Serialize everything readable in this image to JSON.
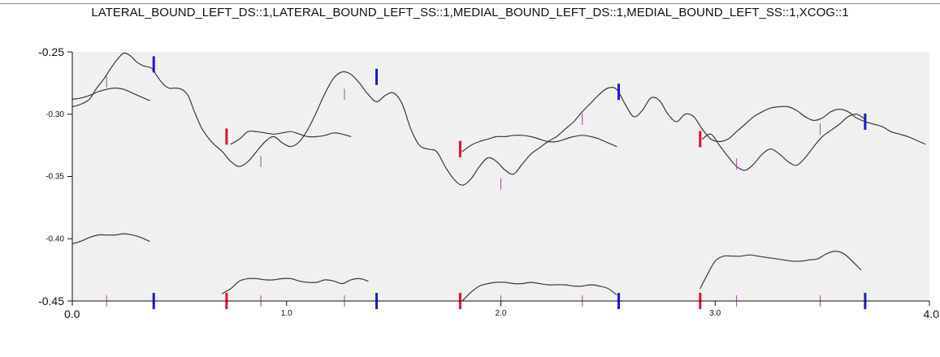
{
  "chart_data": {
    "type": "line",
    "title": "LATERAL_BOUND_LEFT_DS::1,LATERAL_BOUND_LEFT_SS::1,MEDIAL_BOUND_LEFT_DS::1,MEDIAL_BOUND_LEFT_SS::1,XCOG::1",
    "xlabel": "",
    "ylabel": "",
    "xlim": [
      0.0,
      4.0
    ],
    "ylim": [
      -0.45,
      -0.25
    ],
    "grid": false,
    "x_ticks": [
      {
        "value": 0.0,
        "label": "0.0",
        "size": "large"
      },
      {
        "value": 1.0,
        "label": "1.0",
        "size": "small"
      },
      {
        "value": 2.0,
        "label": "2.0",
        "size": "small"
      },
      {
        "value": 3.0,
        "label": "3.0",
        "size": "small"
      },
      {
        "value": 4.0,
        "label": "4.0",
        "size": "large"
      }
    ],
    "y_ticks": [
      {
        "value": -0.25,
        "label": "-0.25",
        "size": "large"
      },
      {
        "value": -0.3,
        "label": "-0.30",
        "size": "small"
      },
      {
        "value": -0.35,
        "label": "-0.35",
        "size": "small"
      },
      {
        "value": -0.4,
        "label": "-0.40",
        "size": "small"
      },
      {
        "value": -0.45,
        "label": "-0.45",
        "size": "large"
      }
    ],
    "colors": {
      "plot_background": "#f0f0f0",
      "series_line": "#3a3a3a",
      "minor_event": "#b03cb8",
      "event_red": "#e0102c",
      "event_blue": "#1a1acc",
      "axis": "#111111"
    },
    "series": [
      {
        "x": [
          0.0,
          0.04,
          0.08,
          0.11,
          0.15,
          0.18,
          0.21,
          0.24,
          0.27,
          0.3,
          0.33,
          0.37,
          0.39,
          0.42,
          0.45,
          0.48,
          0.51,
          0.54,
          0.57,
          0.6,
          0.63,
          0.66,
          0.7,
          0.74,
          0.78,
          0.82,
          0.86,
          0.9,
          0.94,
          0.98,
          1.02,
          1.06,
          1.1,
          1.14,
          1.18,
          1.22,
          1.26,
          1.3,
          1.34,
          1.38,
          1.42,
          1.46,
          1.5,
          1.54,
          1.58,
          1.62,
          1.66,
          1.7,
          1.74,
          1.78,
          1.82,
          1.86,
          1.9,
          1.94,
          1.98,
          2.02,
          2.06,
          2.1,
          2.14,
          2.18,
          2.22,
          2.26,
          2.3,
          2.34,
          2.38,
          2.42,
          2.46,
          2.5,
          2.54,
          2.58,
          2.62,
          2.66,
          2.7,
          2.74,
          2.78,
          2.82,
          2.86,
          2.9,
          2.94,
          2.98,
          3.02,
          3.06,
          3.1,
          3.14,
          3.18,
          3.22,
          3.26,
          3.3,
          3.34,
          3.38,
          3.42,
          3.46,
          3.5,
          3.54,
          3.58,
          3.62,
          3.66,
          3.7,
          3.74,
          3.78,
          3.82,
          3.86,
          3.9,
          3.94,
          3.98
        ],
        "values": [
          -0.294,
          -0.292,
          -0.288,
          -0.28,
          -0.271,
          -0.263,
          -0.256,
          -0.251,
          -0.253,
          -0.258,
          -0.261,
          -0.263,
          -0.268,
          -0.275,
          -0.279,
          -0.279,
          -0.28,
          -0.285,
          -0.298,
          -0.31,
          -0.318,
          -0.324,
          -0.33,
          -0.338,
          -0.342,
          -0.338,
          -0.33,
          -0.322,
          -0.318,
          -0.323,
          -0.326,
          -0.322,
          -0.312,
          -0.298,
          -0.283,
          -0.271,
          -0.266,
          -0.268,
          -0.275,
          -0.284,
          -0.29,
          -0.285,
          -0.283,
          -0.292,
          -0.312,
          -0.325,
          -0.328,
          -0.33,
          -0.342,
          -0.352,
          -0.357,
          -0.352,
          -0.342,
          -0.335,
          -0.338,
          -0.345,
          -0.348,
          -0.34,
          -0.332,
          -0.327,
          -0.322,
          -0.318,
          -0.312,
          -0.306,
          -0.298,
          -0.291,
          -0.284,
          -0.279,
          -0.28,
          -0.292,
          -0.302,
          -0.297,
          -0.287,
          -0.289,
          -0.3,
          -0.306,
          -0.3,
          -0.302,
          -0.312,
          -0.32,
          -0.322,
          -0.32,
          -0.314,
          -0.308,
          -0.302,
          -0.298,
          -0.295,
          -0.294,
          -0.294,
          -0.297,
          -0.302,
          -0.305,
          -0.303,
          -0.298,
          -0.296,
          -0.298,
          -0.303,
          -0.306,
          -0.308,
          -0.31,
          -0.314,
          -0.316,
          -0.318,
          -0.321,
          -0.324
        ]
      },
      {
        "segments": [
          {
            "x": [
              0.0,
              0.04,
              0.08,
              0.12,
              0.16,
              0.2,
              0.24,
              0.28,
              0.32,
              0.36
            ],
            "values": [
              -0.288,
              -0.287,
              -0.285,
              -0.282,
              -0.28,
              -0.279,
              -0.28,
              -0.283,
              -0.286,
              -0.289
            ]
          },
          {
            "x": [
              0.74,
              0.78,
              0.82,
              0.86,
              0.9,
              0.94,
              0.98,
              1.02,
              1.06,
              1.1,
              1.14,
              1.18,
              1.22,
              1.26,
              1.3
            ],
            "values": [
              -0.324,
              -0.32,
              -0.314,
              -0.314,
              -0.315,
              -0.316,
              -0.315,
              -0.314,
              -0.316,
              -0.318,
              -0.318,
              -0.317,
              -0.315,
              -0.316,
              -0.318
            ]
          },
          {
            "x": [
              1.82,
              1.86,
              1.9,
              1.94,
              1.98,
              2.02,
              2.06,
              2.1,
              2.14,
              2.18,
              2.22,
              2.26,
              2.3,
              2.34,
              2.38,
              2.42,
              2.46,
              2.5,
              2.54
            ],
            "values": [
              -0.33,
              -0.325,
              -0.322,
              -0.32,
              -0.318,
              -0.318,
              -0.317,
              -0.317,
              -0.318,
              -0.32,
              -0.322,
              -0.322,
              -0.32,
              -0.318,
              -0.317,
              -0.318,
              -0.32,
              -0.323,
              -0.326
            ]
          },
          {
            "x": [
              2.94,
              2.98,
              3.02,
              3.06,
              3.1,
              3.14,
              3.18,
              3.22,
              3.26,
              3.3,
              3.34,
              3.38,
              3.42,
              3.46,
              3.5,
              3.54,
              3.58,
              3.62,
              3.66,
              3.7
            ],
            "values": [
              -0.32,
              -0.316,
              -0.325,
              -0.334,
              -0.342,
              -0.345,
              -0.34,
              -0.332,
              -0.328,
              -0.332,
              -0.338,
              -0.341,
              -0.335,
              -0.326,
              -0.318,
              -0.313,
              -0.308,
              -0.302,
              -0.3,
              -0.304
            ]
          }
        ]
      },
      {
        "segments": [
          {
            "x": [
              0.0,
              0.04,
              0.08,
              0.12,
              0.16,
              0.2,
              0.24,
              0.28,
              0.32,
              0.36
            ],
            "values": [
              -0.404,
              -0.402,
              -0.399,
              -0.397,
              -0.397,
              -0.397,
              -0.396,
              -0.397,
              -0.399,
              -0.402
            ]
          },
          {
            "x": [
              0.7,
              0.74,
              0.78,
              0.82,
              0.86,
              0.9,
              0.94,
              0.98,
              1.02,
              1.06,
              1.1,
              1.14,
              1.18,
              1.22,
              1.26,
              1.3,
              1.34,
              1.38
            ],
            "values": [
              -0.444,
              -0.44,
              -0.434,
              -0.432,
              -0.432,
              -0.433,
              -0.433,
              -0.432,
              -0.432,
              -0.434,
              -0.435,
              -0.435,
              -0.433,
              -0.434,
              -0.436,
              -0.433,
              -0.432,
              -0.434
            ]
          },
          {
            "x": [
              1.82,
              1.86,
              1.9,
              1.94,
              1.98,
              2.02,
              2.06,
              2.1,
              2.14,
              2.18,
              2.22,
              2.26,
              2.3,
              2.34,
              2.38,
              2.42,
              2.46,
              2.5,
              2.54
            ],
            "values": [
              -0.45,
              -0.443,
              -0.438,
              -0.436,
              -0.435,
              -0.435,
              -0.436,
              -0.436,
              -0.435,
              -0.436,
              -0.437,
              -0.437,
              -0.437,
              -0.438,
              -0.438,
              -0.437,
              -0.438,
              -0.44,
              -0.445
            ]
          },
          {
            "x": [
              2.93,
              2.96,
              3.0,
              3.04,
              3.08,
              3.12,
              3.16,
              3.2,
              3.24,
              3.28,
              3.32,
              3.36,
              3.4,
              3.44,
              3.48,
              3.52,
              3.56,
              3.6,
              3.64,
              3.68
            ],
            "values": [
              -0.44,
              -0.43,
              -0.418,
              -0.414,
              -0.414,
              -0.414,
              -0.413,
              -0.414,
              -0.415,
              -0.416,
              -0.417,
              -0.418,
              -0.418,
              -0.417,
              -0.416,
              -0.412,
              -0.41,
              -0.412,
              -0.418,
              -0.425
            ]
          }
        ]
      }
    ],
    "event_markers": {
      "minor": [
        0.16,
        0.88,
        1.27,
        2.0,
        2.38,
        3.1,
        3.49
      ],
      "red": [
        0.72,
        1.81,
        2.93
      ],
      "blue": [
        0.38,
        1.42,
        2.55,
        3.7
      ]
    }
  }
}
